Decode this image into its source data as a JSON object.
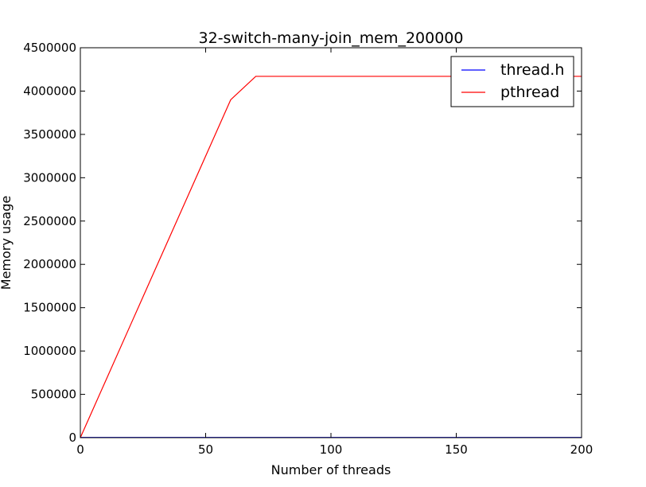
{
  "chart_data": {
    "type": "line",
    "title": "32-switch-many-join_mem_200000",
    "xlabel": "Number of threads",
    "ylabel": "Memory usage",
    "xlim": [
      0,
      200
    ],
    "ylim": [
      0,
      4500000
    ],
    "xticks": [
      0,
      50,
      100,
      150,
      200
    ],
    "yticks": [
      0,
      500000,
      1000000,
      1500000,
      2000000,
      2500000,
      3000000,
      3500000,
      4000000,
      4500000
    ],
    "xtick_labels": [
      "0",
      "50",
      "100",
      "150",
      "200"
    ],
    "ytick_labels": [
      "0",
      "500000",
      "1000000",
      "1500000",
      "2000000",
      "2500000",
      "3000000",
      "3500000",
      "4000000",
      "4500000"
    ],
    "grid": false,
    "legend_position": "top-right",
    "series": [
      {
        "name": "thread.h",
        "color": "#0000ff",
        "x": [
          0,
          10,
          20,
          30,
          40,
          50,
          60,
          70,
          80,
          90,
          100,
          110,
          120,
          130,
          140,
          150,
          160,
          170,
          180,
          190,
          200
        ],
        "y": [
          2000,
          2000,
          2000,
          2000,
          2000,
          2000,
          2000,
          2000,
          2000,
          2000,
          2000,
          2000,
          2000,
          2000,
          2000,
          2000,
          2000,
          2000,
          2000,
          2000,
          2000
        ]
      },
      {
        "name": "pthread",
        "color": "#ff0000",
        "x": [
          0,
          10,
          20,
          30,
          40,
          50,
          60,
          70,
          80,
          90,
          100,
          110,
          120,
          130,
          140,
          150,
          160,
          170,
          180,
          190,
          200
        ],
        "y": [
          0,
          650000,
          1300000,
          1950000,
          2600000,
          3250000,
          3900000,
          4170000,
          4170000,
          4170000,
          4170000,
          4170000,
          4170000,
          4170000,
          4170000,
          4170000,
          4170000,
          4170000,
          4170000,
          4170000,
          4170000
        ]
      }
    ]
  }
}
